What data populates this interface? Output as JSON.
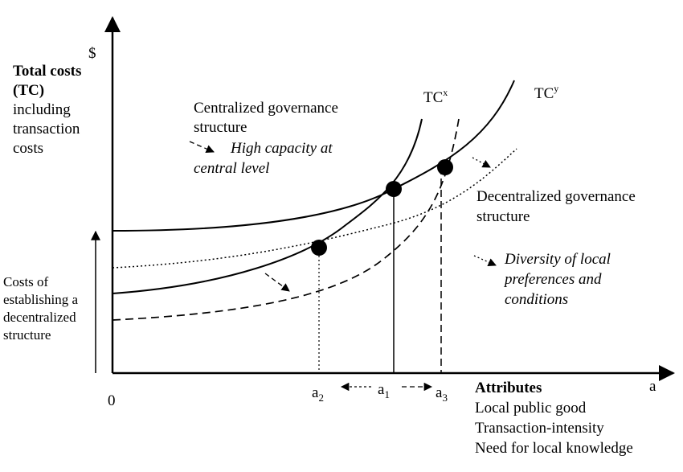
{
  "axes": {
    "y_symbol": "$",
    "origin": "0",
    "x_symbol": "a",
    "y_title_line1": "Total costs",
    "y_title_line2": "(TC)",
    "y_title_line3": "including",
    "y_title_line4": "transaction",
    "y_title_line5": "costs"
  },
  "curves": {
    "tcx_label": "TC",
    "tcx_sup": "x",
    "tcy_label": "TC",
    "tcy_sup": "y"
  },
  "annotations": {
    "centralized_line1": "Centralized governance",
    "centralized_line2": "structure",
    "high_capacity_line1": "High capacity at",
    "high_capacity_line2": "central level",
    "decentralized_line1": "Decentralized governance",
    "decentralized_line2": "structure",
    "diversity_line1": "Diversity of local",
    "diversity_line2": "preferences and",
    "diversity_line3": "conditions",
    "costs_line1": "Costs of",
    "costs_line2": "establishing a",
    "costs_line3": "decentralized",
    "costs_line4": "structure"
  },
  "x_ticks": {
    "a2": "a",
    "a2_sub": "2",
    "a1": "a",
    "a1_sub": "1",
    "a3": "a",
    "a3_sub": "3"
  },
  "attributes": {
    "title": "Attributes",
    "line1": "Local public good",
    "line2": "Transaction-intensity",
    "line3": "Need for local knowledge"
  }
}
